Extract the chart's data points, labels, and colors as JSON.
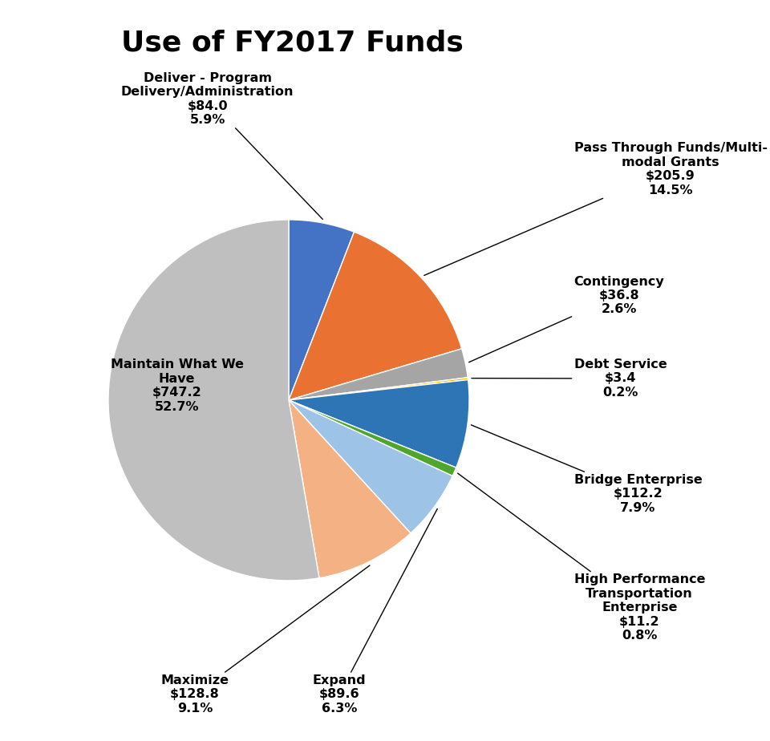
{
  "title": "Use of FY2017 Funds",
  "slices": [
    {
      "label": "Deliver - Program\nDelivery/Administration\n$84.0\n5.9%",
      "value": 5.9,
      "color": "#4472C4"
    },
    {
      "label": "Pass Through Funds/Multi-\nmodal Grants\n$205.9\n14.5%",
      "value": 14.5,
      "color": "#E97132"
    },
    {
      "label": "Contingency\n$36.8\n2.6%",
      "value": 2.6,
      "color": "#A5A5A5"
    },
    {
      "label": "Debt Service\n$3.4\n0.2%",
      "value": 0.2,
      "color": "#FFC000"
    },
    {
      "label": "Bridge Enterprise\n$112.2\n7.9%",
      "value": 7.9,
      "color": "#2E75B6"
    },
    {
      "label": "High Performance\nTransportation\nEnterprise\n$11.2\n0.8%",
      "value": 0.8,
      "color": "#4EA72A"
    },
    {
      "label": "Expand\n$89.6\n6.3%",
      "value": 6.3,
      "color": "#9DC3E6"
    },
    {
      "label": "Maximize\n$128.8\n9.1%",
      "value": 9.1,
      "color": "#F4B183"
    },
    {
      "label": "Maintain What We\nHave\n$747.2\n52.7%",
      "value": 52.7,
      "color": "#BFBFBF"
    }
  ],
  "title_fontsize": 26,
  "label_fontsize": 11.5,
  "figsize": [
    9.6,
    9.24
  ],
  "bg_color": "#ffffff"
}
